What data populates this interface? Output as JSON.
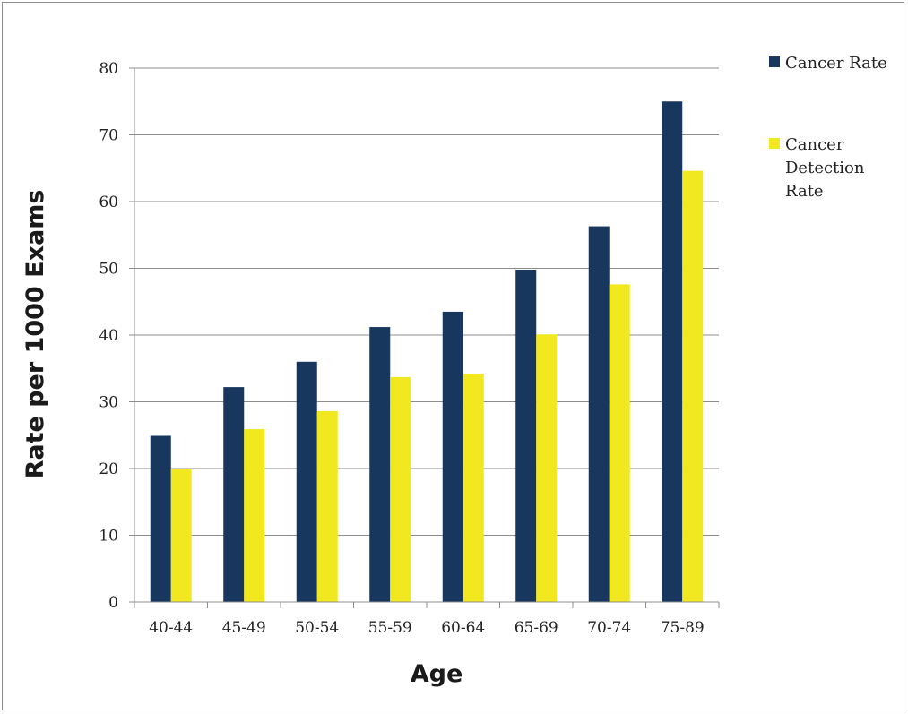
{
  "chart_data": {
    "type": "bar",
    "categories": [
      "40-44",
      "45-49",
      "50-54",
      "55-59",
      "60-64",
      "65-69",
      "70-74",
      "75-89"
    ],
    "series": [
      {
        "name": "Cancer Rate",
        "color": "#17375e",
        "values": [
          24.9,
          32.2,
          36.0,
          41.2,
          43.5,
          49.8,
          56.3,
          75.0
        ]
      },
      {
        "name": "Cancer Detection Rate",
        "legend_lines": [
          "Cancer",
          "Detection",
          "Rate"
        ],
        "color": "#f2e81f",
        "values": [
          20.0,
          25.9,
          28.6,
          33.7,
          34.2,
          40.1,
          47.6,
          64.6
        ]
      }
    ],
    "xlabel": "Age",
    "ylabel": "Rate per 1000 Exams",
    "ylim": [
      0,
      80
    ],
    "yticks": [
      0,
      10,
      20,
      30,
      40,
      50,
      60,
      70,
      80
    ],
    "grid": "horizontal",
    "legend_position": "right"
  }
}
